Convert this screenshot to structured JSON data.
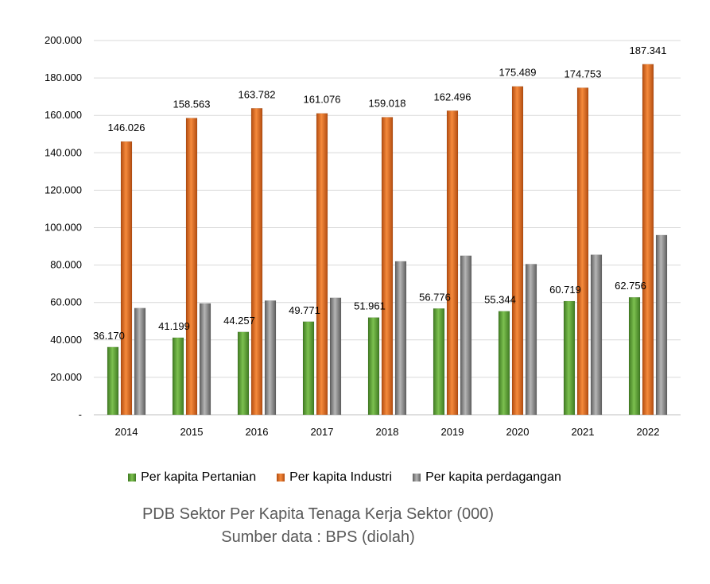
{
  "chart_data": {
    "type": "bar",
    "title": "",
    "xlabel": "",
    "ylabel": "",
    "ylim": [
      0,
      200000
    ],
    "yticks": [
      "-",
      "20.000",
      "40.000",
      "60.000",
      "80.000",
      "100.000",
      "120.000",
      "140.000",
      "160.000",
      "180.000",
      "200.000"
    ],
    "grid": true,
    "legend_position": "bottom",
    "categories": [
      "2014",
      "2015",
      "2016",
      "2017",
      "2018",
      "2019",
      "2020",
      "2021",
      "2022"
    ],
    "series": [
      {
        "name": "Per kapita Pertanian",
        "color": "#5a9e35",
        "values": [
          36170,
          41199,
          44257,
          49771,
          51961,
          56776,
          55344,
          60719,
          62756
        ],
        "labels": [
          "36.170",
          "41.199",
          "44.257",
          "49.771",
          "51.961",
          "56.776",
          "55.344",
          "60.719",
          "62.756"
        ]
      },
      {
        "name": "Per kapita Industri",
        "color": "#e36c1f",
        "values": [
          146026,
          158563,
          163782,
          161076,
          159018,
          162496,
          175489,
          174753,
          187341
        ],
        "labels": [
          "146.026",
          "158.563",
          "163.782",
          "161.076",
          "159.018",
          "162.496",
          "175.489",
          "174.753",
          "187.341"
        ]
      },
      {
        "name": "Per kapita perdagangan",
        "color": "#8c8c8c",
        "values": [
          57000,
          59500,
          61000,
          62500,
          82000,
          85000,
          80500,
          85500,
          96000
        ],
        "labels": []
      }
    ]
  },
  "caption": {
    "line1": "PDB Sektor Per Kapita Tenaga Kerja Sektor (000)",
    "line2": "Sumber data : BPS (diolah)"
  }
}
